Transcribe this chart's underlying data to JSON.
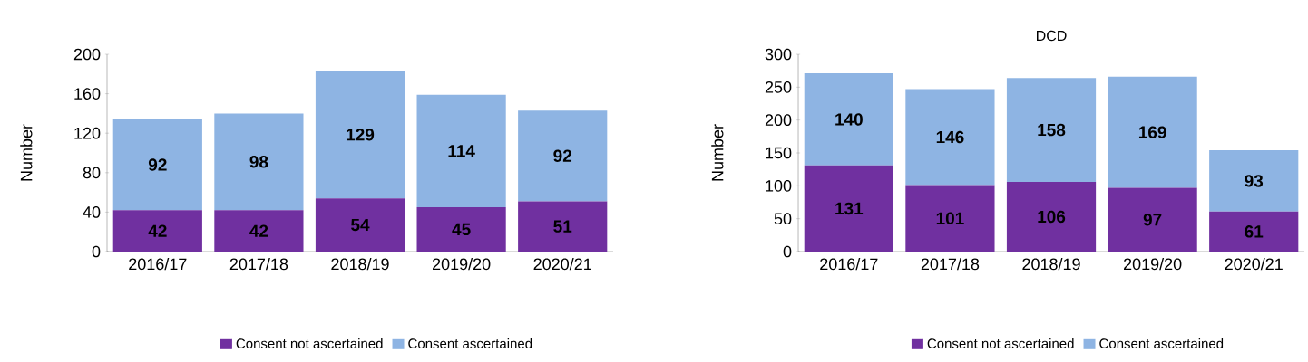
{
  "chart_data": [
    {
      "type": "bar",
      "stacked": true,
      "categories": [
        "2016/17",
        "2017/18",
        "2018/19",
        "2019/20",
        "2020/21"
      ],
      "ylabel": "Number",
      "ylim": [
        0,
        200
      ],
      "yticks": [
        0,
        40,
        80,
        120,
        160,
        200
      ],
      "legend": "bottom",
      "data_labels": true,
      "series": [
        {
          "name": "Consent not ascertained",
          "color": "#7030a0",
          "values": [
            42,
            42,
            54,
            45,
            51
          ]
        },
        {
          "name": "Consent ascertained",
          "color": "#8eb4e3",
          "values": [
            92,
            98,
            129,
            114,
            92
          ]
        }
      ]
    },
    {
      "type": "bar",
      "stacked": true,
      "title": "DCD",
      "categories": [
        "2016/17",
        "2017/18",
        "2018/19",
        "2019/20",
        "2020/21"
      ],
      "ylabel": "Number",
      "ylim": [
        0,
        300
      ],
      "yticks": [
        0,
        50,
        100,
        150,
        200,
        250,
        300
      ],
      "legend": "bottom",
      "data_labels": true,
      "series": [
        {
          "name": "Consent not ascertained",
          "color": "#7030a0",
          "values": [
            131,
            101,
            106,
            97,
            61
          ]
        },
        {
          "name": "Consent ascertained",
          "color": "#8eb4e3",
          "values": [
            140,
            146,
            158,
            169,
            93
          ]
        }
      ]
    }
  ]
}
